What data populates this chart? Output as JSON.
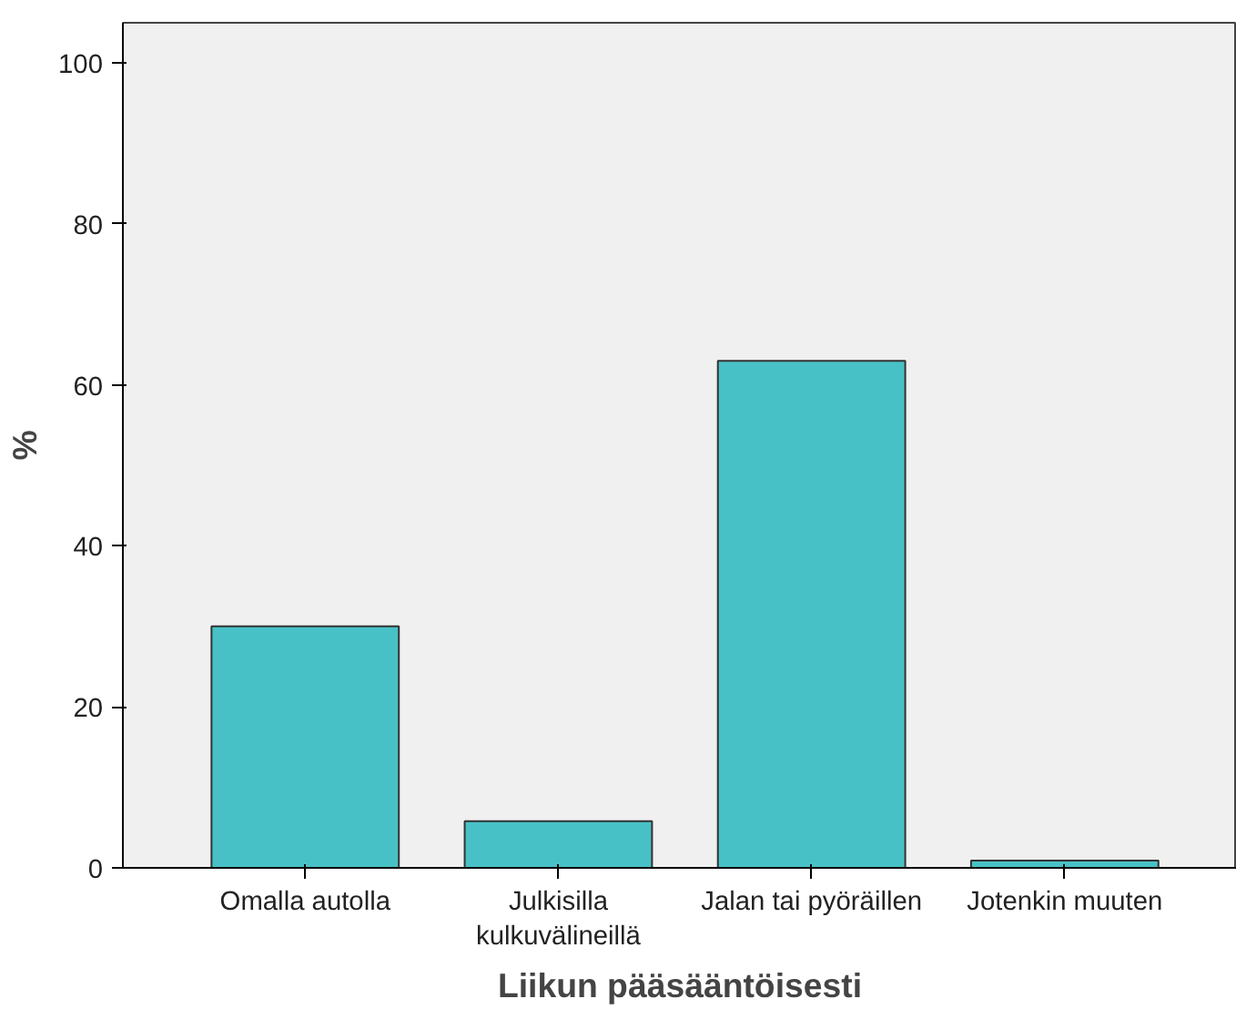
{
  "chart_data": {
    "type": "bar",
    "xlabel": "Liikun pääsääntöisesti",
    "ylabel": "%",
    "categories": [
      "Omalla autolla",
      "Julkisilla kulkuvälineillä",
      "Jalan tai pyöräillen",
      "Jotenkin muuten"
    ],
    "values": [
      30.0,
      5.8,
      63.0,
      0.9
    ],
    "color": "#48c1c6",
    "ylim": [
      0,
      105
    ],
    "yticks": [
      0,
      20,
      40,
      60,
      80,
      100
    ]
  }
}
